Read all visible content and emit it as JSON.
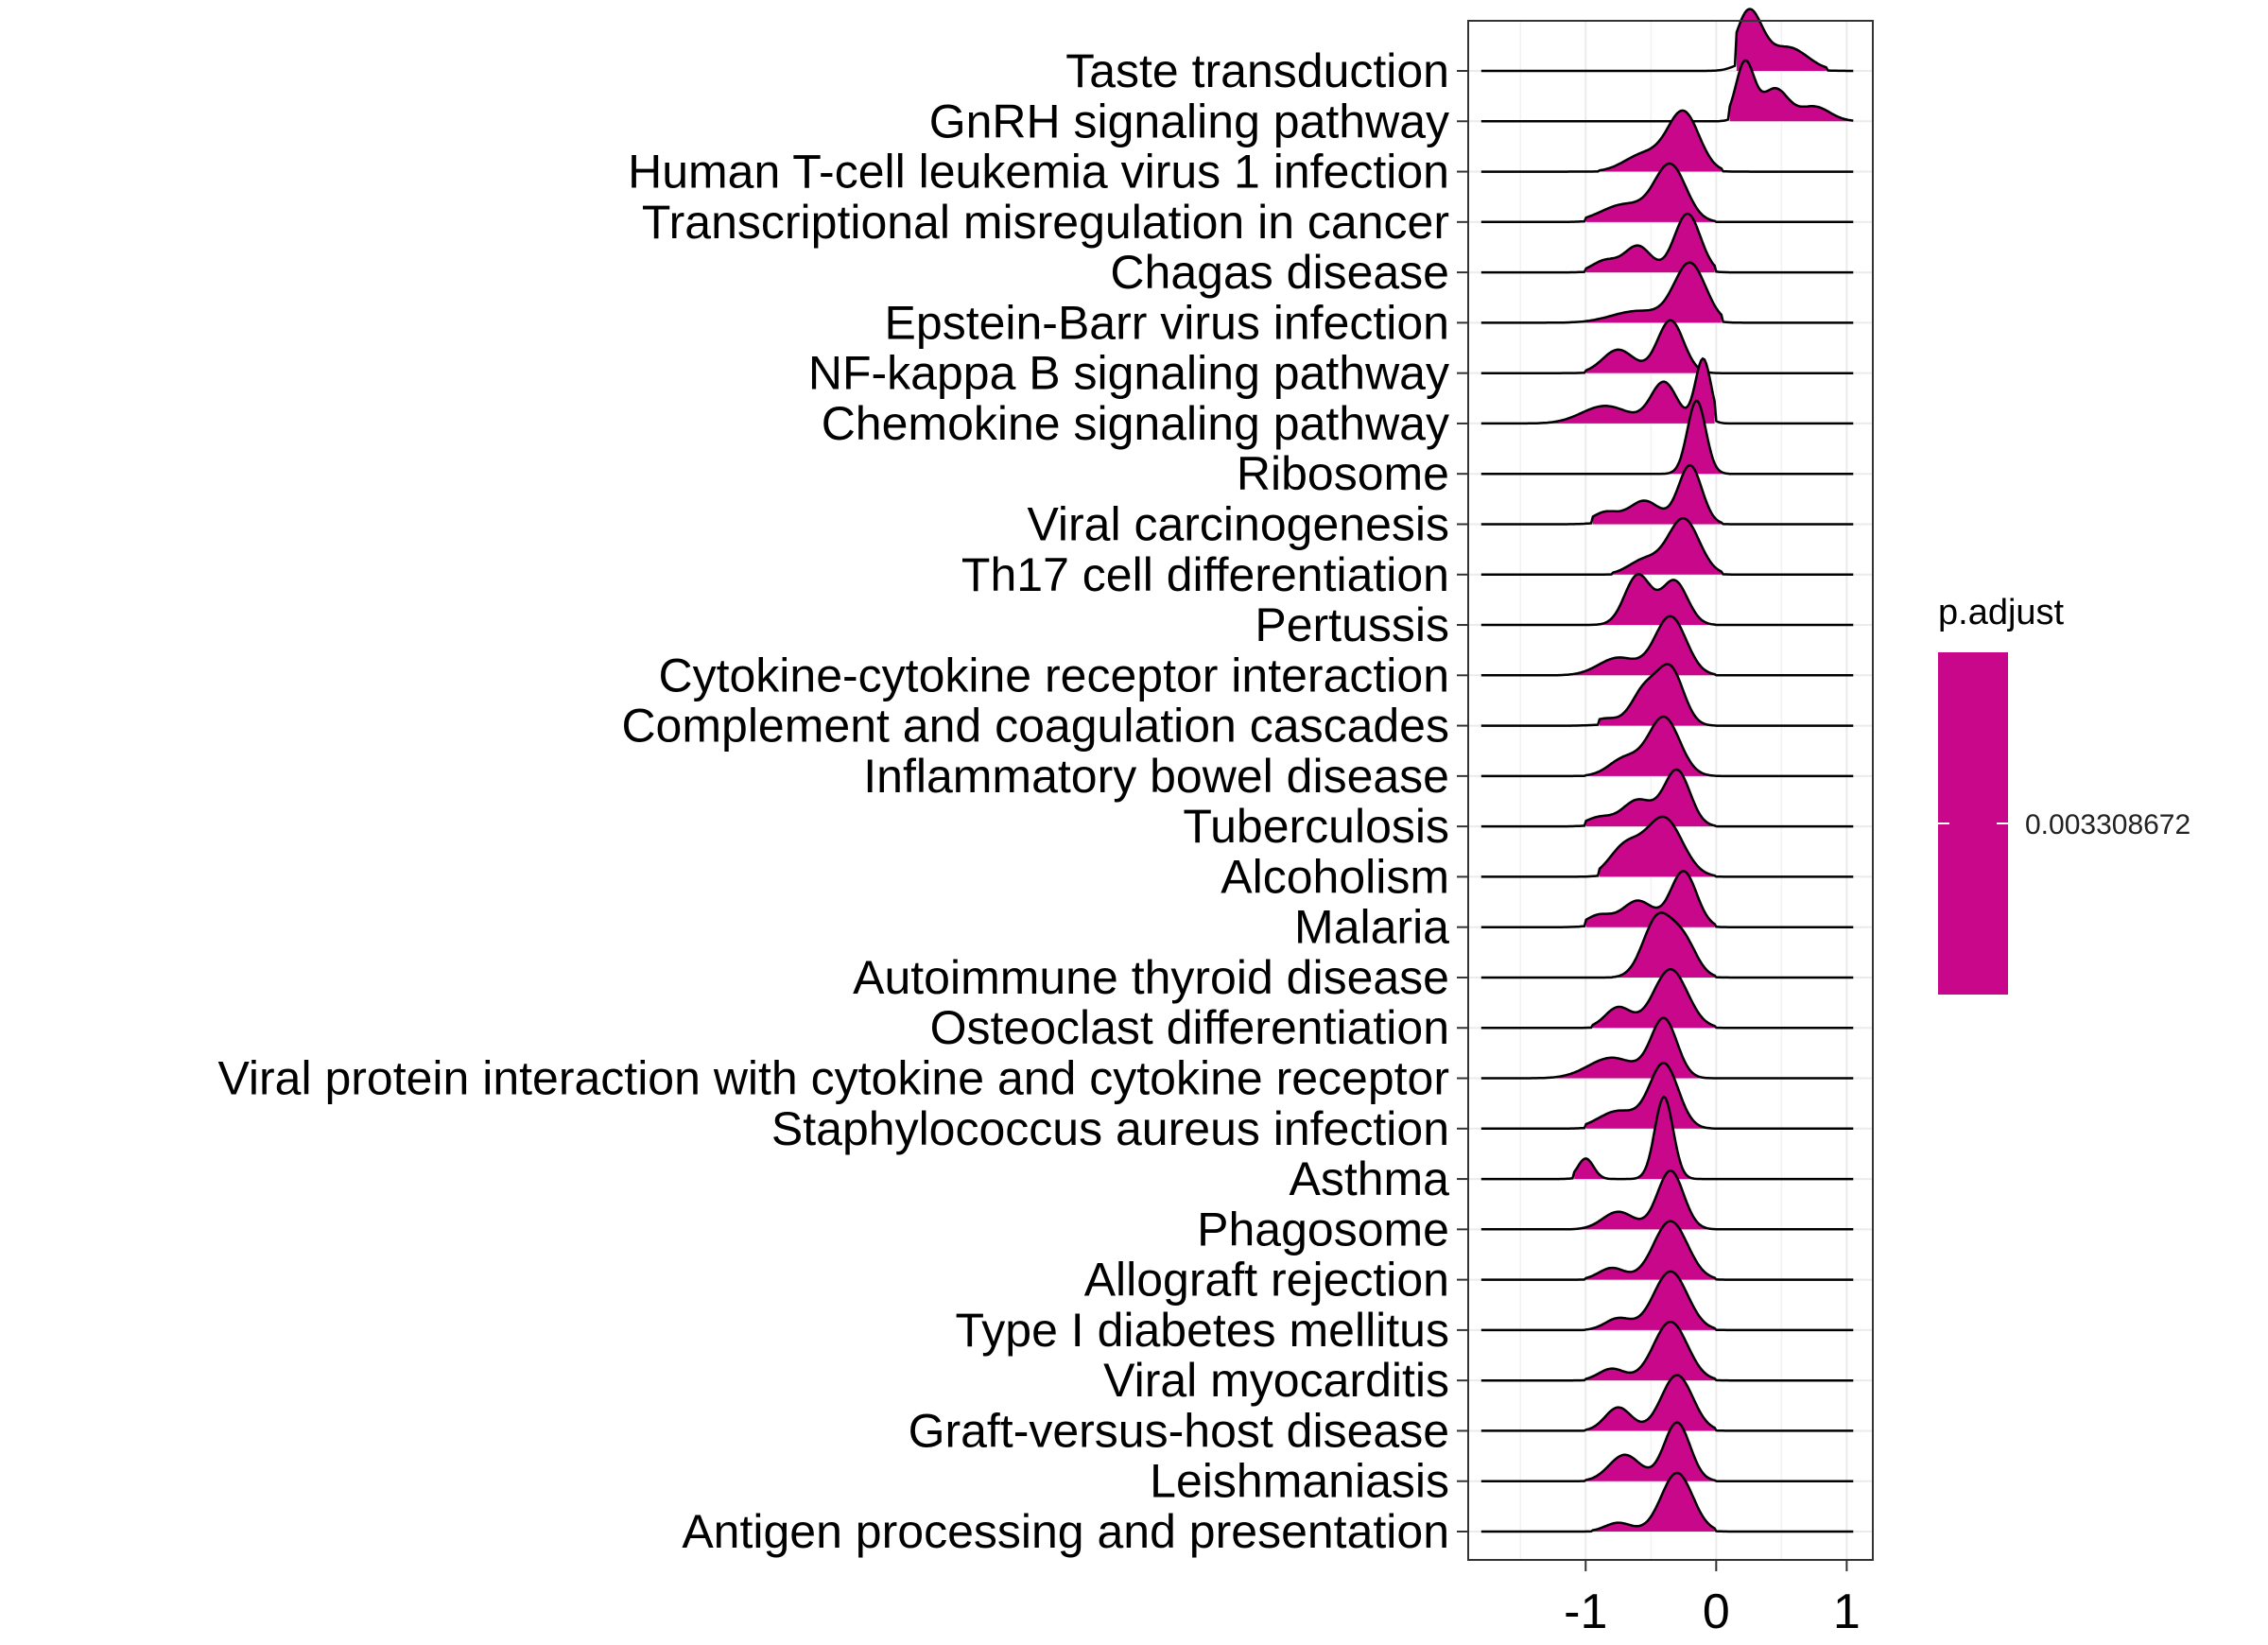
{
  "chart_data": {
    "type": "ridgeline",
    "title": "",
    "xlabel": "",
    "ylabel": "",
    "xlim": [
      -1.9,
      1.2
    ],
    "x_ticks": [
      -1,
      0,
      1
    ],
    "x_tick_labels": [
      "-1",
      "0",
      "1"
    ],
    "grid": true,
    "fill_color": "#C8078A",
    "categories": [
      {
        "name": "Taste transduction",
        "peaks": [
          [
            0.25,
            1.0,
            0.1
          ],
          [
            0.55,
            0.4,
            0.15
          ]
        ],
        "range": [
          0.15,
          0.85
        ]
      },
      {
        "name": "GnRH signaling pathway",
        "peaks": [
          [
            0.22,
            1.0,
            0.07
          ],
          [
            0.45,
            0.55,
            0.1
          ],
          [
            0.75,
            0.25,
            0.12
          ]
        ],
        "range": [
          0.1,
          1.05
        ]
      },
      {
        "name": "Human T-cell leukemia virus 1 infection",
        "peaks": [
          [
            -0.25,
            1.0,
            0.12
          ],
          [
            -0.55,
            0.3,
            0.15
          ]
        ],
        "range": [
          -0.9,
          0.05
        ]
      },
      {
        "name": "Transcriptional misregulation in cancer",
        "peaks": [
          [
            -0.35,
            0.95,
            0.12
          ],
          [
            -0.7,
            0.3,
            0.18
          ]
        ],
        "range": [
          -1.0,
          0.0
        ]
      },
      {
        "name": "Chagas disease",
        "peaks": [
          [
            -0.22,
            1.0,
            0.1
          ],
          [
            -0.6,
            0.45,
            0.1
          ],
          [
            -0.85,
            0.2,
            0.1
          ]
        ],
        "range": [
          -1.0,
          0.0
        ]
      },
      {
        "name": "Epstein-Barr virus infection",
        "peaks": [
          [
            -0.2,
            1.0,
            0.12
          ],
          [
            -0.6,
            0.2,
            0.2
          ]
        ],
        "range": [
          -1.6,
          0.05
        ]
      },
      {
        "name": "NF-kappa B signaling pathway",
        "peaks": [
          [
            -0.35,
            0.9,
            0.1
          ],
          [
            -0.75,
            0.4,
            0.12
          ]
        ],
        "range": [
          -1.0,
          0.0
        ]
      },
      {
        "name": "Chemokine signaling pathway",
        "peaks": [
          [
            -0.1,
            1.1,
            0.06
          ],
          [
            -0.4,
            0.7,
            0.1
          ],
          [
            -0.85,
            0.3,
            0.18
          ]
        ],
        "range": [
          -1.55,
          0.0
        ]
      },
      {
        "name": "Ribosome",
        "peaks": [
          [
            -0.15,
            1.25,
            0.07
          ]
        ],
        "range": [
          -0.45,
          0.1
        ]
      },
      {
        "name": "Viral carcinogenesis",
        "peaks": [
          [
            -0.2,
            1.0,
            0.09
          ],
          [
            -0.55,
            0.4,
            0.12
          ],
          [
            -0.85,
            0.2,
            0.1
          ]
        ],
        "range": [
          -0.95,
          0.05
        ]
      },
      {
        "name": "Th17 cell differentiation",
        "peaks": [
          [
            -0.25,
            0.95,
            0.12
          ],
          [
            -0.55,
            0.25,
            0.12
          ]
        ],
        "range": [
          -0.8,
          0.05
        ]
      },
      {
        "name": "Pertussis",
        "peaks": [
          [
            -0.6,
            0.85,
            0.1
          ],
          [
            -0.32,
            0.75,
            0.1
          ]
        ],
        "range": [
          -1.0,
          0.0
        ]
      },
      {
        "name": "Cytokine-cytokine receptor interaction",
        "peaks": [
          [
            -0.35,
            1.0,
            0.12
          ],
          [
            -0.75,
            0.3,
            0.15
          ]
        ],
        "range": [
          -1.6,
          0.0
        ]
      },
      {
        "name": "Complement and coagulation cascades",
        "peaks": [
          [
            -0.35,
            0.95,
            0.1
          ],
          [
            -0.55,
            0.6,
            0.1
          ],
          [
            -0.85,
            0.12,
            0.1
          ]
        ],
        "range": [
          -0.9,
          0.0
        ]
      },
      {
        "name": "Inflammatory bowel disease",
        "peaks": [
          [
            -0.4,
            1.0,
            0.12
          ],
          [
            -0.7,
            0.3,
            0.12
          ]
        ],
        "range": [
          -1.0,
          0.0
        ]
      },
      {
        "name": "Tuberculosis",
        "peaks": [
          [
            -0.3,
            0.95,
            0.1
          ],
          [
            -0.6,
            0.45,
            0.12
          ],
          [
            -0.9,
            0.15,
            0.1
          ]
        ],
        "range": [
          -1.0,
          0.0
        ]
      },
      {
        "name": "Alcoholism",
        "peaks": [
          [
            -0.4,
            1.0,
            0.14
          ],
          [
            -0.7,
            0.5,
            0.12
          ]
        ],
        "range": [
          -0.9,
          0.0
        ]
      },
      {
        "name": "Malaria",
        "peaks": [
          [
            -0.25,
            0.95,
            0.1
          ],
          [
            -0.6,
            0.45,
            0.12
          ],
          [
            -0.9,
            0.2,
            0.1
          ]
        ],
        "range": [
          -1.0,
          0.0
        ]
      },
      {
        "name": "Autoimmune thyroid disease",
        "peaks": [
          [
            -0.45,
            1.0,
            0.11
          ],
          [
            -0.25,
            0.6,
            0.1
          ]
        ],
        "range": [
          -0.8,
          0.0
        ]
      },
      {
        "name": "Osteoclast differentiation",
        "peaks": [
          [
            -0.35,
            1.0,
            0.13
          ],
          [
            -0.75,
            0.35,
            0.1
          ]
        ],
        "range": [
          -0.95,
          0.0
        ]
      },
      {
        "name": "Viral protein interaction with cytokine and cytokine receptor",
        "peaks": [
          [
            -0.4,
            1.0,
            0.1
          ],
          [
            -0.8,
            0.35,
            0.18
          ]
        ],
        "range": [
          -1.6,
          0.0
        ]
      },
      {
        "name": "Staphylococcus aureus infection",
        "peaks": [
          [
            -0.4,
            1.1,
            0.11
          ],
          [
            -0.75,
            0.3,
            0.15
          ]
        ],
        "range": [
          -1.0,
          0.0
        ]
      },
      {
        "name": "Asthma",
        "peaks": [
          [
            -0.4,
            1.4,
            0.07
          ],
          [
            -1.0,
            0.35,
            0.06
          ]
        ],
        "range": [
          -1.1,
          0.0
        ]
      },
      {
        "name": "Phagosome",
        "peaks": [
          [
            -0.35,
            1.0,
            0.1
          ],
          [
            -0.75,
            0.3,
            0.12
          ]
        ],
        "range": [
          -1.6,
          0.0
        ]
      },
      {
        "name": "Allograft rejection",
        "peaks": [
          [
            -0.35,
            1.0,
            0.13
          ],
          [
            -0.8,
            0.2,
            0.1
          ]
        ],
        "range": [
          -1.0,
          0.0
        ]
      },
      {
        "name": "Type I diabetes mellitus",
        "peaks": [
          [
            -0.35,
            1.0,
            0.13
          ],
          [
            -0.75,
            0.2,
            0.1
          ]
        ],
        "range": [
          -1.0,
          0.0
        ]
      },
      {
        "name": "Viral myocarditis",
        "peaks": [
          [
            -0.35,
            1.0,
            0.13
          ],
          [
            -0.8,
            0.2,
            0.1
          ]
        ],
        "range": [
          -1.0,
          0.0
        ]
      },
      {
        "name": "Graft-versus-host disease",
        "peaks": [
          [
            -0.3,
            0.95,
            0.12
          ],
          [
            -0.75,
            0.4,
            0.1
          ]
        ],
        "range": [
          -1.0,
          0.0
        ]
      },
      {
        "name": "Leishmaniasis",
        "peaks": [
          [
            -0.3,
            1.0,
            0.1
          ],
          [
            -0.7,
            0.45,
            0.12
          ]
        ],
        "range": [
          -1.0,
          0.0
        ]
      },
      {
        "name": "Antigen processing and presentation",
        "peaks": [
          [
            -0.3,
            1.0,
            0.12
          ],
          [
            -0.75,
            0.15,
            0.1
          ]
        ],
        "range": [
          -0.95,
          0.0
        ]
      }
    ],
    "legend": {
      "title": "p.adjust",
      "label": "0.003308672",
      "placement": "right"
    }
  }
}
